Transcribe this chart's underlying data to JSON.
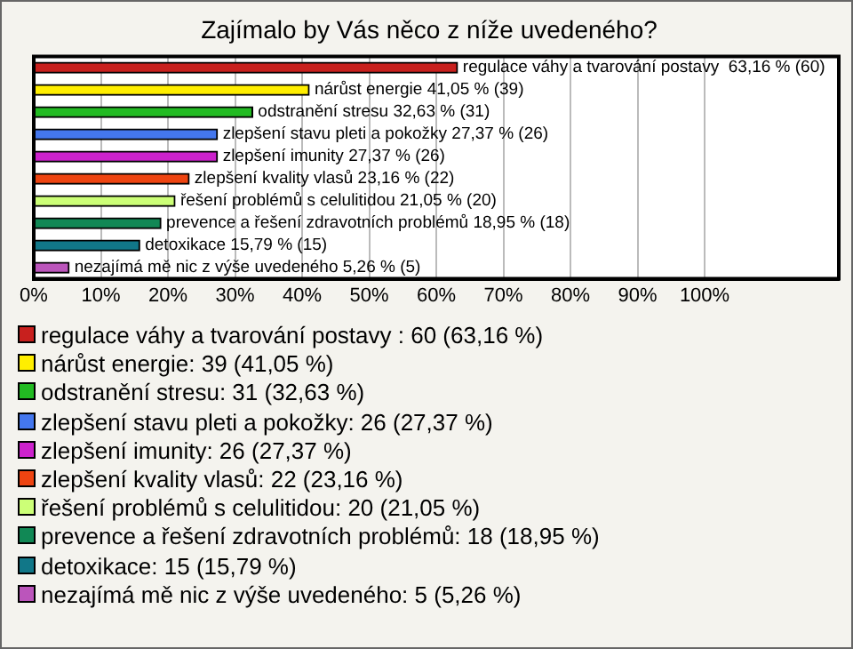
{
  "chart_data": {
    "type": "bar",
    "orientation": "horizontal",
    "title": "Zajímalo by Vás něco z níže uvedeného?",
    "categories": [
      null,
      null,
      null,
      null,
      null,
      null,
      null,
      null,
      null,
      null
    ],
    "values": [
      63.16,
      41.05,
      32.63,
      27.37,
      27.37,
      23.16,
      21.05,
      18.95,
      15.79,
      5.26
    ],
    "value_labels": [
      "regulace váhy a tvarování postavy  63,16 % (60)",
      "nárůst energie 41,05 % (39)",
      "odstranění stresu 32,63 % (31)",
      "zlepšení stavu pleti a pokožky 27,37 % (26)",
      "zlepšení imunity 27,37 % (26)",
      "zlepšení kvality vlasů 23,16 % (22)",
      "řešení problémů s celulitidou 21,05 % (20)",
      "prevence a řešení zdravotních problémů 18,95 % (18)",
      "detoxikace 15,79 % (15)",
      "nezajímá mě nic z výše uvedeného 5,26 % (5)"
    ],
    "colors": [
      "#c8201e",
      "#ffee00",
      "#22bb22",
      "#4477ee",
      "#cc22cc",
      "#ee4411",
      "#ccff77",
      "#118855",
      "#117788",
      "#bb55bb"
    ],
    "xlim": [
      0,
      120
    ],
    "xticks": [
      {
        "value": 0,
        "label": "0%"
      },
      {
        "value": 10,
        "label": "10%"
      },
      {
        "value": 20,
        "label": "20%"
      },
      {
        "value": 30,
        "label": "30%"
      },
      {
        "value": 40,
        "label": "40%"
      },
      {
        "value": 50,
        "label": "50%"
      },
      {
        "value": 60,
        "label": "60%"
      },
      {
        "value": 70,
        "label": "70%"
      },
      {
        "value": 80,
        "label": "80%"
      },
      {
        "value": 90,
        "label": "90%"
      },
      {
        "value": 100,
        "label": "100%"
      }
    ],
    "grid": "x",
    "tick_labels": "x",
    "annotations": [
      "regulace váhy a tvarování postavy : 60 (63,16 %)",
      "nárůst energie: 39 (41,05 %)",
      "odstranění stresu: 31 (32,63 %)",
      "zlepšení stavu pleti a pokožky: 26 (27,37 %)",
      "zlepšení imunity: 26 (27,37 %)",
      "zlepšení kvality vlasů: 22 (23,16 %)",
      "řešení problémů s celulitidou: 20 (21,05 %)",
      "prevence a řešení zdravotních problémů: 18 (18,95 %)",
      "detoxikace: 15 (15,79 %)",
      "nezajímá mě nic z výše uvedeného: 5 (5,26 %)"
    ]
  }
}
